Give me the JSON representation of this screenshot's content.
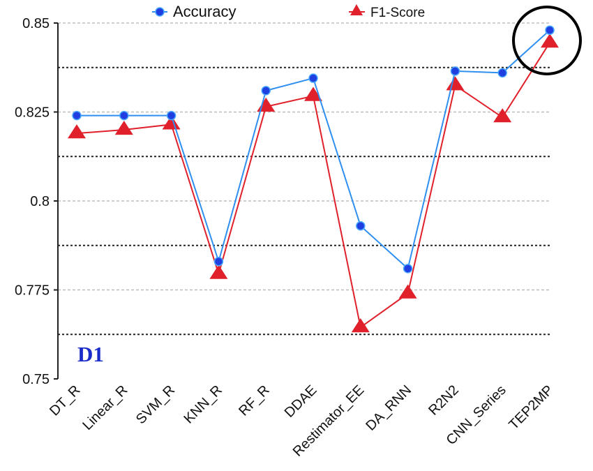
{
  "chart_data": {
    "type": "line",
    "categories": [
      "DT_R",
      "Linear_R",
      "SVM_R",
      "KNN_R",
      "RF_R",
      "DDAE",
      "Restimator_EE",
      "DA_RNN",
      "R2N2",
      "CNN_Series",
      "TEP2MP"
    ],
    "series": [
      {
        "name": "Accuracy",
        "values": [
          0.824,
          0.824,
          0.824,
          0.783,
          0.831,
          0.8345,
          0.793,
          0.781,
          0.8365,
          0.836,
          0.848
        ],
        "color": "#2f8ff0",
        "marker_color": "#1f3fe0",
        "marker": "circle"
      },
      {
        "name": "F1-Score",
        "values": [
          0.819,
          0.82,
          0.8215,
          0.7795,
          0.8265,
          0.8295,
          0.7645,
          0.774,
          0.8325,
          0.8235,
          0.8445
        ],
        "color": "#e0202a",
        "marker": "triangle"
      }
    ],
    "y_ticks": [
      "0.75",
      "0.775",
      "0.8",
      "0.825",
      "0.85"
    ],
    "ylim": [
      0.75,
      0.85
    ],
    "grid": true,
    "legend": "top",
    "annotation": "D1",
    "annotation_color": "#1a2cc8",
    "highlight": {
      "category": "TEP2MP",
      "shape": "circle"
    }
  }
}
